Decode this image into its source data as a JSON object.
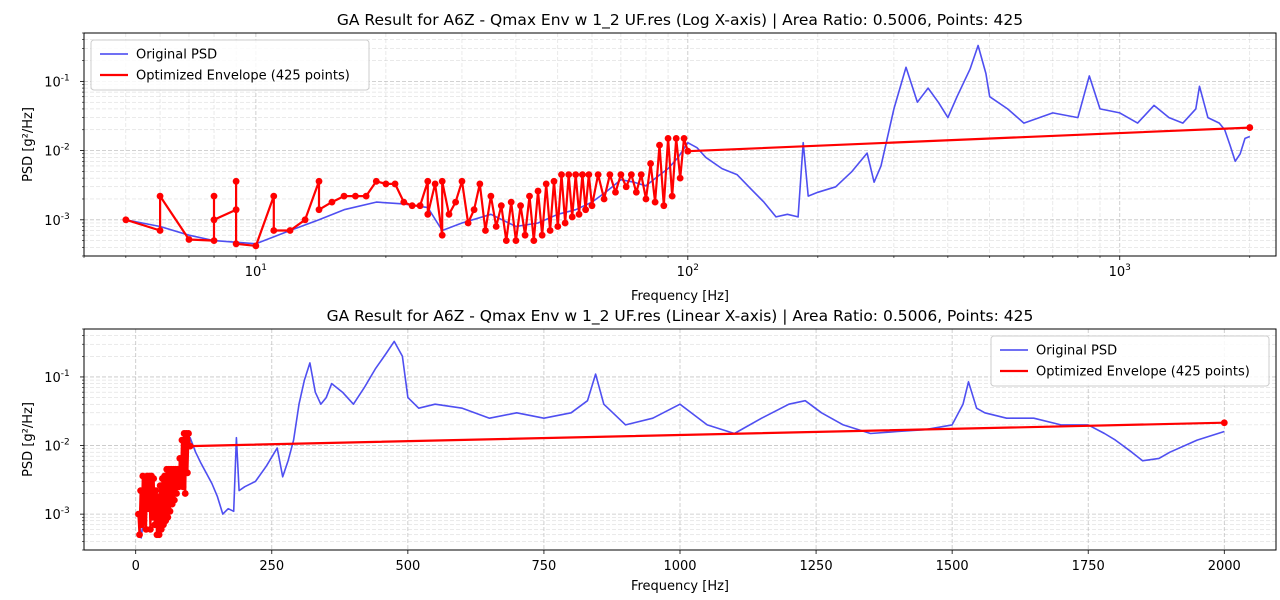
{
  "chart_data": [
    {
      "type": "line",
      "title": "GA Result for A6Z - Qmax Env w 1_2 UF.res (Log X-axis) | Area Ratio: 0.5006, Points: 425",
      "xlabel": "Frequency [Hz]",
      "ylabel": "PSD [g²/Hz]",
      "xscale": "log",
      "yscale": "log",
      "xlim": [
        4,
        2300
      ],
      "ylim": [
        0.0003,
        0.5
      ],
      "x_tick_labels": [
        "10",
        "10",
        "10"
      ],
      "x_tick_exponents": [
        "1",
        "2",
        "3"
      ],
      "x_tick_values": [
        10,
        100,
        1000
      ],
      "y_tick_labels": [
        "10",
        "10",
        "10"
      ],
      "y_tick_exponents": [
        "-3",
        "-2",
        "-1"
      ],
      "y_tick_values": [
        0.001,
        0.01,
        0.1
      ],
      "grid": true,
      "legend_position": "top-left",
      "series": [
        {
          "name": "Original PSD",
          "color": "#4040f0",
          "x": [
            5,
            6,
            7,
            8,
            10,
            12,
            14,
            16,
            19,
            22,
            25,
            27,
            30,
            35,
            40,
            45,
            50,
            55,
            60,
            65,
            70,
            75,
            80,
            85,
            90,
            95,
            100,
            105,
            110,
            120,
            130,
            140,
            150,
            160,
            170,
            180,
            185,
            190,
            200,
            220,
            240,
            260,
            270,
            280,
            300,
            320,
            340,
            360,
            380,
            400,
            420,
            450,
            470,
            490,
            500,
            550,
            600,
            700,
            800,
            850,
            900,
            1000,
            1100,
            1200,
            1300,
            1400,
            1500,
            1530,
            1600,
            1700,
            1750,
            1800,
            1850,
            1900,
            1950,
            2000
          ],
          "y": [
            0.001,
            0.0008,
            0.0006,
            0.0005,
            0.00045,
            0.0007,
            0.001,
            0.0014,
            0.0018,
            0.0017,
            0.0015,
            0.0007,
            0.0009,
            0.0012,
            0.0008,
            0.0009,
            0.0012,
            0.0014,
            0.0018,
            0.0026,
            0.0038,
            0.0035,
            0.0031,
            0.0042,
            0.0055,
            0.008,
            0.013,
            0.011,
            0.008,
            0.0055,
            0.0045,
            0.0028,
            0.0018,
            0.0011,
            0.0012,
            0.0011,
            0.013,
            0.0022,
            0.0025,
            0.003,
            0.005,
            0.0092,
            0.0035,
            0.006,
            0.04,
            0.16,
            0.05,
            0.08,
            0.05,
            0.03,
            0.06,
            0.15,
            0.33,
            0.13,
            0.06,
            0.04,
            0.025,
            0.035,
            0.03,
            0.12,
            0.04,
            0.035,
            0.025,
            0.045,
            0.03,
            0.025,
            0.04,
            0.085,
            0.03,
            0.025,
            0.02,
            0.012,
            0.007,
            0.009,
            0.015,
            0.016
          ]
        },
        {
          "name": "Optimized Envelope (425 points)",
          "color": "#ff0000",
          "x": [
            5,
            6,
            6,
            7,
            8,
            8,
            8,
            9,
            9,
            9,
            10,
            11,
            11,
            12,
            13,
            14,
            14,
            15,
            16,
            17,
            18,
            19,
            20,
            21,
            22,
            23,
            24,
            25,
            25,
            26,
            27,
            27,
            28,
            29,
            30,
            31,
            32,
            33,
            34,
            35,
            36,
            37,
            38,
            39,
            40,
            41,
            42,
            43,
            44,
            45,
            46,
            47,
            48,
            49,
            50,
            51,
            52,
            53,
            54,
            55,
            56,
            57,
            58,
            59,
            60,
            62,
            64,
            66,
            68,
            70,
            72,
            74,
            76,
            78,
            80,
            82,
            84,
            86,
            88,
            90,
            92,
            94,
            96,
            98,
            100,
            2000
          ],
          "y": [
            0.001,
            0.0007,
            0.0022,
            0.00052,
            0.0005,
            0.0022,
            0.001,
            0.0014,
            0.0036,
            0.00045,
            0.00042,
            0.0022,
            0.0007,
            0.0007,
            0.001,
            0.0036,
            0.0014,
            0.0018,
            0.0022,
            0.0022,
            0.0022,
            0.0036,
            0.0033,
            0.0033,
            0.0018,
            0.0016,
            0.0016,
            0.0036,
            0.0012,
            0.0033,
            0.0006,
            0.0036,
            0.0012,
            0.0018,
            0.0036,
            0.0009,
            0.0014,
            0.0033,
            0.0007,
            0.0022,
            0.0008,
            0.0016,
            0.0005,
            0.0018,
            0.0005,
            0.0016,
            0.0006,
            0.0022,
            0.0005,
            0.0026,
            0.0006,
            0.0033,
            0.0007,
            0.0036,
            0.0008,
            0.0045,
            0.0009,
            0.0045,
            0.0011,
            0.0045,
            0.0012,
            0.0045,
            0.0014,
            0.0045,
            0.0016,
            0.0045,
            0.002,
            0.0045,
            0.0025,
            0.0045,
            0.003,
            0.0045,
            0.0025,
            0.0045,
            0.002,
            0.0065,
            0.0018,
            0.012,
            0.0016,
            0.015,
            0.0022,
            0.015,
            0.004,
            0.015,
            0.0098,
            0.0215
          ]
        }
      ]
    },
    {
      "type": "line",
      "title": "GA Result for A6Z - Qmax Env w 1_2 UF.res (Linear X-axis) | Area Ratio: 0.5006, Points: 425",
      "xlabel": "Frequency [Hz]",
      "ylabel": "PSD [g²/Hz]",
      "xscale": "linear",
      "yscale": "log",
      "xlim": [
        -95,
        2095
      ],
      "ylim": [
        0.0003,
        0.5
      ],
      "x_tick_labels": [
        "0",
        "250",
        "500",
        "750",
        "1000",
        "1250",
        "1500",
        "1750",
        "2000"
      ],
      "x_tick_values": [
        0,
        250,
        500,
        750,
        1000,
        1250,
        1500,
        1750,
        2000
      ],
      "y_tick_labels": [
        "10",
        "10",
        "10"
      ],
      "y_tick_exponents": [
        "-3",
        "-2",
        "-1"
      ],
      "y_tick_values": [
        0.001,
        0.01,
        0.1
      ],
      "grid": true,
      "legend_position": "top-right",
      "series": [
        {
          "name": "Original PSD",
          "color": "#4040f0",
          "x": [
            5,
            10,
            20,
            30,
            40,
            50,
            60,
            70,
            80,
            90,
            100,
            110,
            120,
            140,
            150,
            160,
            170,
            180,
            185,
            190,
            200,
            220,
            240,
            260,
            270,
            280,
            290,
            300,
            310,
            320,
            330,
            340,
            350,
            360,
            380,
            400,
            420,
            440,
            460,
            475,
            490,
            500,
            520,
            550,
            600,
            650,
            700,
            750,
            800,
            830,
            845,
            860,
            900,
            950,
            1000,
            1050,
            1100,
            1150,
            1200,
            1230,
            1260,
            1300,
            1350,
            1400,
            1450,
            1500,
            1520,
            1530,
            1545,
            1560,
            1600,
            1650,
            1700,
            1750,
            1780,
            1800,
            1830,
            1850,
            1880,
            1900,
            1950,
            2000
          ],
          "y": [
            0.001,
            0.00045,
            0.002,
            0.0009,
            0.0008,
            0.0012,
            0.0018,
            0.0038,
            0.0031,
            0.0055,
            0.013,
            0.008,
            0.0055,
            0.0028,
            0.0018,
            0.001,
            0.0012,
            0.0011,
            0.013,
            0.0022,
            0.0025,
            0.003,
            0.005,
            0.0092,
            0.0035,
            0.006,
            0.012,
            0.04,
            0.09,
            0.16,
            0.06,
            0.04,
            0.05,
            0.08,
            0.06,
            0.04,
            0.07,
            0.13,
            0.22,
            0.33,
            0.2,
            0.05,
            0.035,
            0.04,
            0.035,
            0.025,
            0.03,
            0.025,
            0.03,
            0.045,
            0.11,
            0.04,
            0.02,
            0.025,
            0.04,
            0.02,
            0.015,
            0.025,
            0.04,
            0.045,
            0.03,
            0.02,
            0.015,
            0.016,
            0.017,
            0.02,
            0.04,
            0.085,
            0.035,
            0.03,
            0.025,
            0.025,
            0.02,
            0.02,
            0.015,
            0.012,
            0.008,
            0.006,
            0.0065,
            0.008,
            0.012,
            0.016
          ]
        },
        {
          "name": "Optimized Envelope (425 points)",
          "color": "#ff0000",
          "x": [
            5,
            7,
            9,
            11,
            13,
            15,
            17,
            19,
            21,
            23,
            25,
            27,
            29,
            31,
            33,
            35,
            37,
            39,
            41,
            43,
            45,
            47,
            49,
            51,
            53,
            55,
            57,
            59,
            61,
            63,
            65,
            67,
            69,
            71,
            73,
            75,
            77,
            79,
            81,
            83,
            85,
            87,
            89,
            91,
            93,
            95,
            97,
            100,
            2000
          ],
          "y": [
            0.001,
            0.0005,
            0.0022,
            0.0007,
            0.0036,
            0.0008,
            0.0033,
            0.0006,
            0.0036,
            0.0012,
            0.0036,
            0.0006,
            0.0036,
            0.0009,
            0.0033,
            0.0007,
            0.0022,
            0.0005,
            0.0018,
            0.0005,
            0.0026,
            0.0006,
            0.0033,
            0.0007,
            0.0036,
            0.0008,
            0.0045,
            0.0009,
            0.0045,
            0.0011,
            0.0045,
            0.0014,
            0.0045,
            0.0016,
            0.0045,
            0.002,
            0.0045,
            0.0025,
            0.0065,
            0.003,
            0.012,
            0.0025,
            0.015,
            0.002,
            0.015,
            0.004,
            0.015,
            0.0098,
            0.0215
          ]
        }
      ]
    }
  ]
}
